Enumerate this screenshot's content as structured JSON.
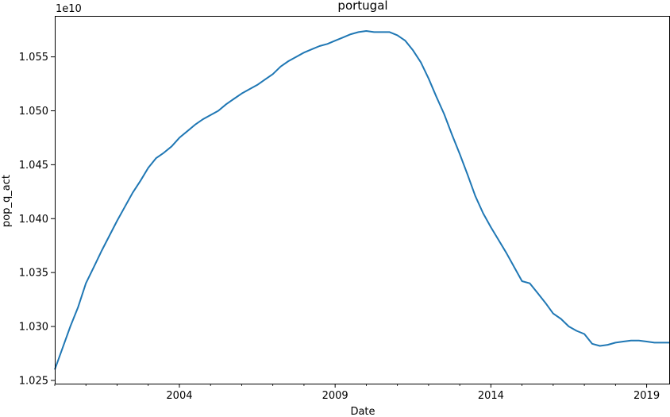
{
  "chart_data": {
    "type": "line",
    "title": "portugal",
    "xlabel": "Date",
    "ylabel": "pop_q_act",
    "y_offset_label": "1e10",
    "x_tick_labels": [
      "2004",
      "2009",
      "2014",
      "2019"
    ],
    "x_tick_years": [
      2004,
      2009,
      2014,
      2019
    ],
    "y_tick_labels": [
      "1.025",
      "1.030",
      "1.035",
      "1.040",
      "1.045",
      "1.050",
      "1.055"
    ],
    "y_ticks": [
      1.025,
      1.03,
      1.035,
      1.04,
      1.045,
      1.05,
      1.055
    ],
    "xlim": [
      2000.0,
      2019.75
    ],
    "ylim": [
      1.0247,
      1.0588
    ],
    "grid": false,
    "line_color": "#1f77b4",
    "series": [
      {
        "x": [
          2000.0,
          2000.25,
          2000.5,
          2000.75,
          2001.0,
          2001.25,
          2001.5,
          2001.75,
          2002.0,
          2002.25,
          2002.5,
          2002.75,
          2003.0,
          2003.25,
          2003.5,
          2003.75,
          2004.0,
          2004.25,
          2004.5,
          2004.75,
          2005.0,
          2005.25,
          2005.5,
          2005.75,
          2006.0,
          2006.25,
          2006.5,
          2006.75,
          2007.0,
          2007.25,
          2007.5,
          2007.75,
          2008.0,
          2008.25,
          2008.5,
          2008.75,
          2009.0,
          2009.25,
          2009.5,
          2009.75,
          2010.0,
          2010.25,
          2010.5,
          2010.75,
          2011.0,
          2011.25,
          2011.5,
          2011.75,
          2012.0,
          2012.25,
          2012.5,
          2012.75,
          2013.0,
          2013.25,
          2013.5,
          2013.75,
          2014.0,
          2014.25,
          2014.5,
          2014.75,
          2015.0,
          2015.25,
          2015.5,
          2015.75,
          2016.0,
          2016.25,
          2016.5,
          2016.75,
          2017.0,
          2017.25,
          2017.5,
          2017.75,
          2018.0,
          2018.25,
          2018.5,
          2018.75,
          2019.0,
          2019.25,
          2019.5,
          2019.75
        ],
        "y": [
          1.026,
          1.028,
          1.03,
          1.0318,
          1.034,
          1.0355,
          1.037,
          1.0384,
          1.0398,
          1.0411,
          1.0424,
          1.0435,
          1.0447,
          1.0456,
          1.0461,
          1.0467,
          1.0475,
          1.0481,
          1.0487,
          1.0492,
          1.0496,
          1.05,
          1.0506,
          1.0511,
          1.0516,
          1.052,
          1.0524,
          1.0529,
          1.0534,
          1.0541,
          1.0546,
          1.055,
          1.0554,
          1.0557,
          1.056,
          1.0562,
          1.0565,
          1.0568,
          1.0571,
          1.0573,
          1.0574,
          1.0573,
          1.0573,
          1.0573,
          1.057,
          1.0565,
          1.0556,
          1.0545,
          1.053,
          1.0513,
          1.0497,
          1.0478,
          1.046,
          1.0441,
          1.0421,
          1.0405,
          1.0392,
          1.038,
          1.0368,
          1.0355,
          1.0342,
          1.034,
          1.0331,
          1.0322,
          1.0312,
          1.0307,
          1.03,
          1.0296,
          1.0293,
          1.0284,
          1.0282,
          1.0283,
          1.0285,
          1.0286,
          1.0287,
          1.0287,
          1.0286,
          1.0285,
          1.0285,
          1.0285
        ]
      }
    ]
  }
}
